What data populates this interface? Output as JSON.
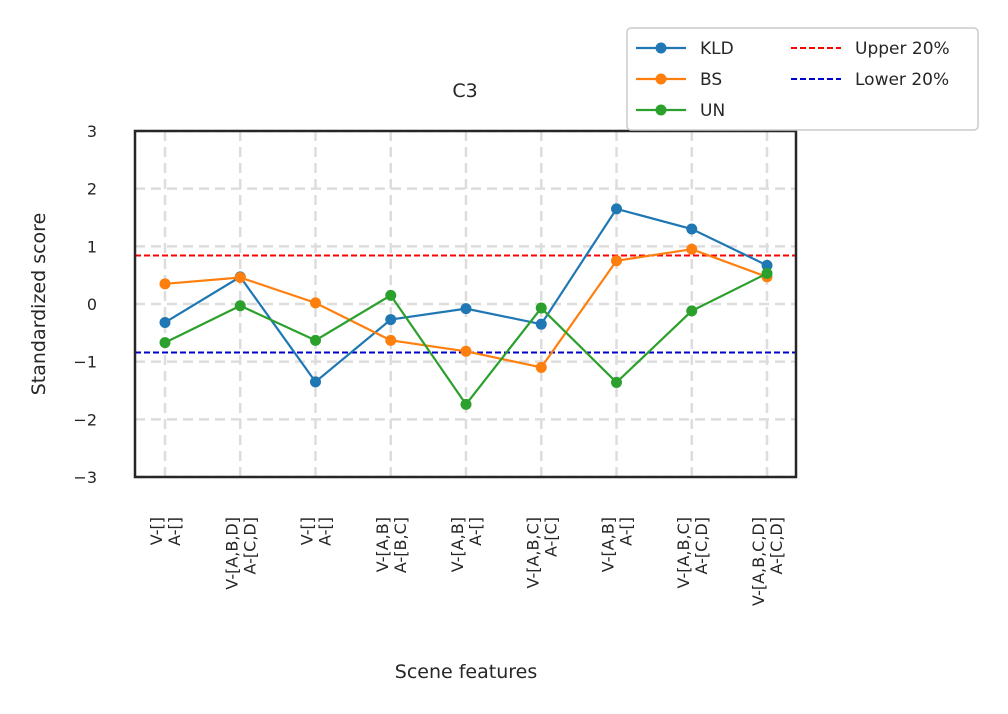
{
  "chart_data": {
    "type": "line",
    "title": "C3",
    "xlabel": "Scene features",
    "ylabel": "Standardized score",
    "ylim": [
      -3,
      3
    ],
    "yticks": [
      -3,
      -2,
      -1,
      0,
      1,
      2,
      3
    ],
    "ytick_labels": [
      "−3",
      "−2",
      "−1",
      "0",
      "1",
      "2",
      "3"
    ],
    "grid": true,
    "legend_position": "top-right",
    "categories": [
      [
        "V-[]",
        "A-[]"
      ],
      [
        "V-[A,B,D]",
        "A-[C,D]"
      ],
      [
        "V-[]",
        "A-[]"
      ],
      [
        "V-[A,B]",
        "A-[B,C]"
      ],
      [
        "V-[A,B]",
        "A-[]"
      ],
      [
        "V-[A,B,C]",
        "A-[C]"
      ],
      [
        "V-[A,B]",
        "A-[]"
      ],
      [
        "V-[A,B,C]",
        "A-[C,D]"
      ],
      [
        "V-[A,B,C,D]",
        "A-[C,D]"
      ]
    ],
    "series": [
      {
        "name": "KLD",
        "color": "#1f77b4",
        "values": [
          -0.32,
          0.47,
          -1.35,
          -0.27,
          -0.08,
          -0.35,
          1.65,
          1.3,
          0.67
        ]
      },
      {
        "name": "BS",
        "color": "#ff7f0e",
        "values": [
          0.35,
          0.46,
          0.02,
          -0.63,
          -0.82,
          -1.1,
          0.75,
          0.95,
          0.47
        ]
      },
      {
        "name": "UN",
        "color": "#2ca02c",
        "values": [
          -0.67,
          -0.03,
          -0.63,
          0.15,
          -1.74,
          -0.07,
          -1.36,
          -0.12,
          0.53
        ]
      }
    ],
    "reference_lines": [
      {
        "name": "Upper 20%",
        "color": "#ff0000",
        "value": 0.84
      },
      {
        "name": "Lower 20%",
        "color": "#0000cc",
        "value": -0.84
      }
    ]
  }
}
